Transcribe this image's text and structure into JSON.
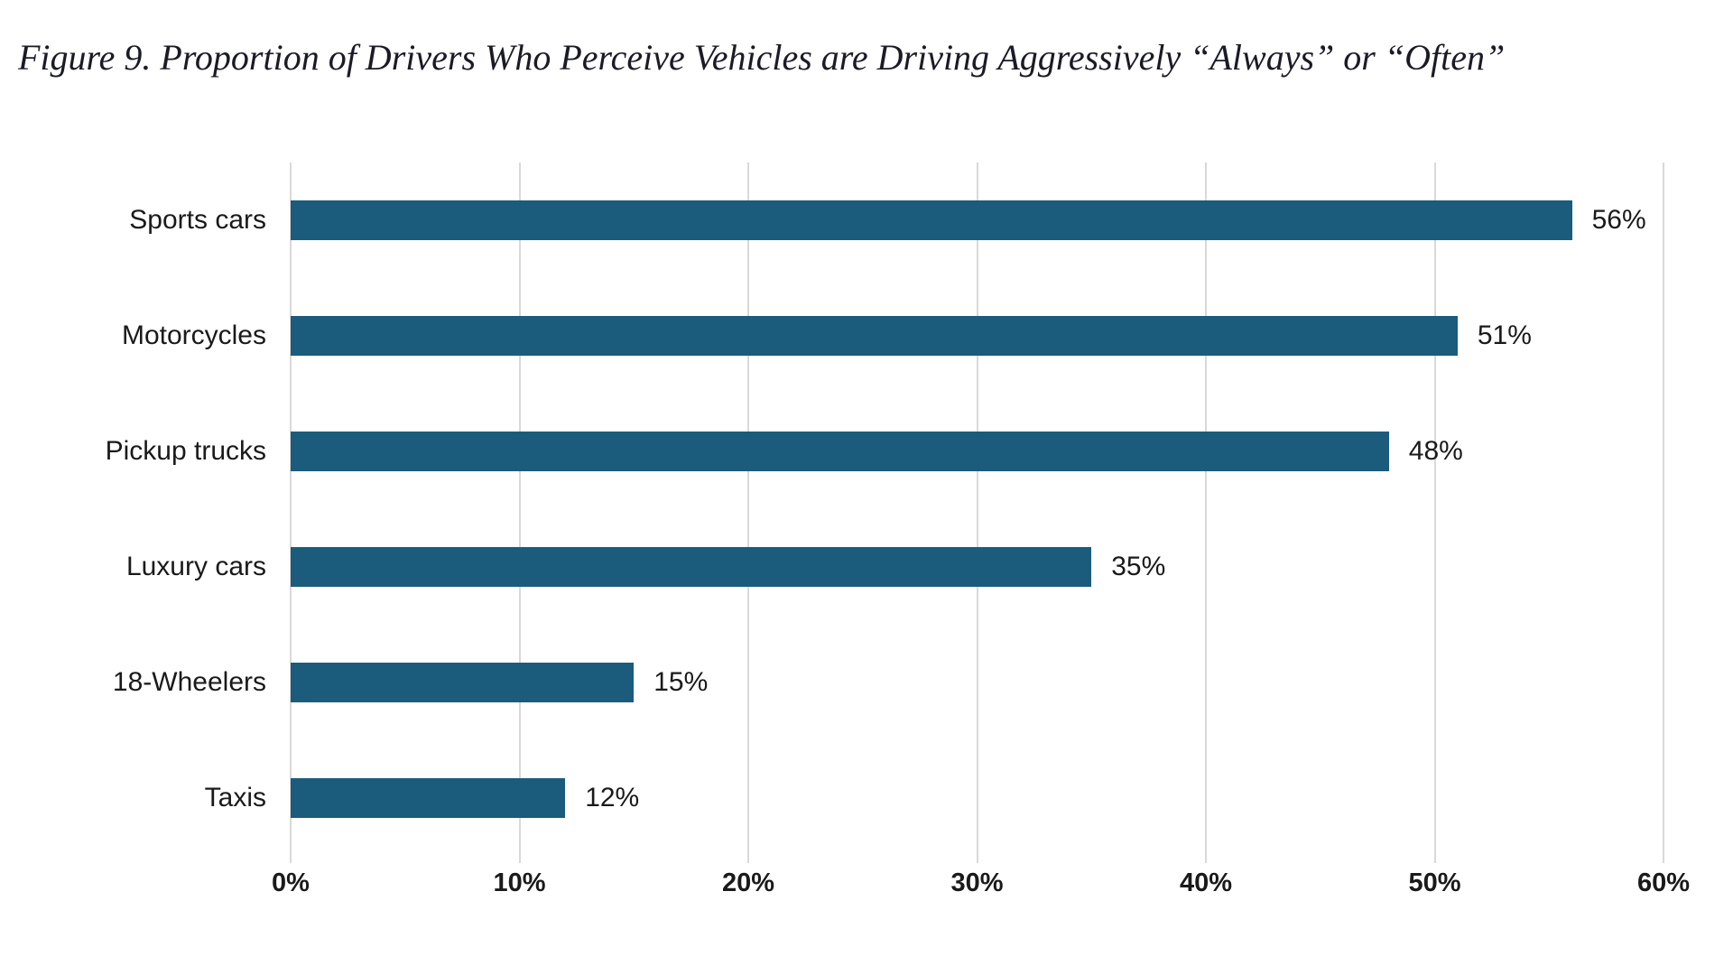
{
  "figure": {
    "title": "Figure 9. Proportion of Drivers Who Perceive Vehicles are Driving Aggressively “Always” or “Often”"
  },
  "chart_data": {
    "type": "bar",
    "orientation": "horizontal",
    "title": "Figure 9. Proportion of Drivers Who Perceive Vehicles are Driving Aggressively “Always” or “Often”",
    "categories": [
      "Sports cars",
      "Motorcycles",
      "Pickup trucks",
      "Luxury cars",
      "18-Wheelers",
      "Taxis"
    ],
    "values": [
      56,
      51,
      48,
      35,
      15,
      12
    ],
    "value_labels": [
      "56%",
      "51%",
      "48%",
      "35%",
      "15%",
      "12%"
    ],
    "x_tick_values": [
      0,
      10,
      20,
      30,
      40,
      50,
      60
    ],
    "x_tick_labels": [
      "0%",
      "10%",
      "20%",
      "30%",
      "40%",
      "50%",
      "60%"
    ],
    "xlim": [
      0,
      60
    ],
    "xlabel": "",
    "ylabel": "",
    "grid": true,
    "legend": false,
    "bar_color": "#1b5b7b",
    "gridline_color": "#d9d9d9",
    "text_color": "#1a1a1a"
  }
}
